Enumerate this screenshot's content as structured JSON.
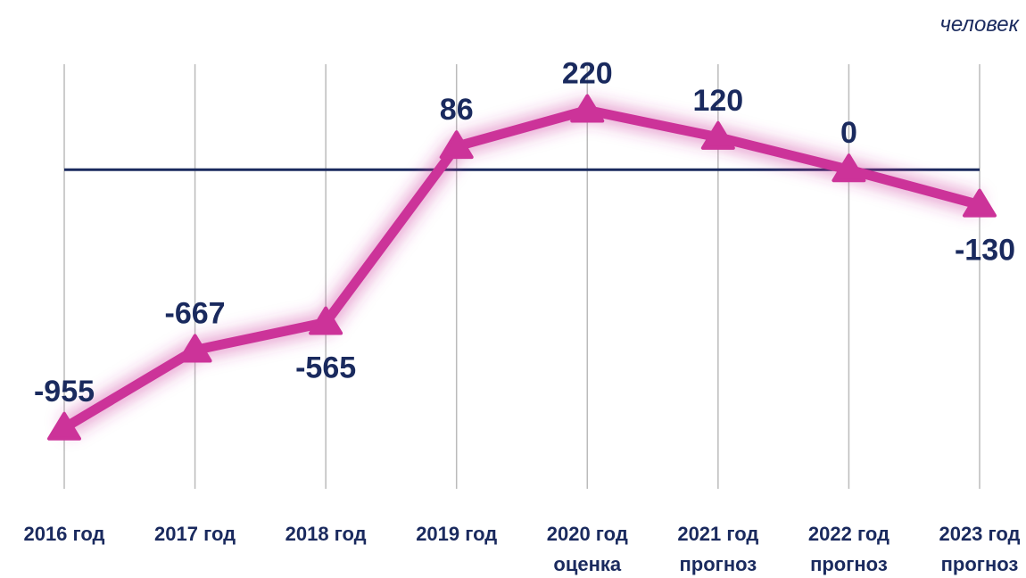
{
  "chart_data": {
    "type": "line",
    "unit": "человек",
    "categories": [
      "2016 год",
      "2017 год",
      "2018 год",
      "2019 год",
      "2020 год",
      "2021 год",
      "2022 год",
      "2023 год"
    ],
    "category_notes": [
      null,
      null,
      null,
      null,
      "оценка",
      "прогноз",
      "прогноз",
      "прогноз"
    ],
    "series": [
      {
        "color": "#cc3399",
        "values": [
          -955,
          -667,
          -565,
          86,
          220,
          120,
          0,
          -130
        ]
      }
    ],
    "ylim": [
      -1180,
      390
    ],
    "zero_line": true,
    "grid": true
  }
}
